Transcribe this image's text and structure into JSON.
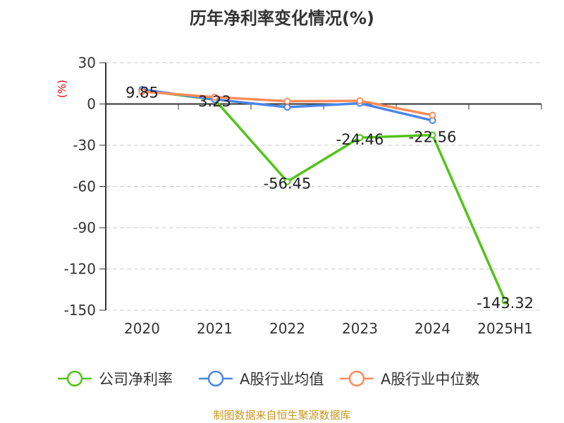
{
  "chart_data": {
    "type": "line",
    "title": "历年净利率变化情况(%)",
    "ylabel": "(%)",
    "categories": [
      "2020",
      "2021",
      "2022",
      "2023",
      "2024",
      "2025H1"
    ],
    "ylim": [
      -150,
      30
    ],
    "yticks": [
      30,
      0,
      -30,
      -60,
      -90,
      -120,
      -150
    ],
    "grid": true,
    "legend": "bottom",
    "series": [
      {
        "name": "公司净利率",
        "color": "#52c41a",
        "values": [
          9.85,
          3.23,
          -56.45,
          -24.46,
          -22.56,
          -143.32
        ],
        "labels": [
          "9.85",
          "3.23",
          "-56.45",
          "-24.46",
          "-22.56",
          "-143.32"
        ]
      },
      {
        "name": "A股行业均值",
        "color": "#4a86e8",
        "values": [
          10.5,
          3.3,
          -2.3,
          0.5,
          -12.0,
          null
        ]
      },
      {
        "name": "A股行业中位数",
        "color": "#ff8c5a",
        "values": [
          9.0,
          5.0,
          2.0,
          2.3,
          -8.2,
          null
        ]
      }
    ]
  },
  "source": "制图数据来自恒生聚源数据库"
}
